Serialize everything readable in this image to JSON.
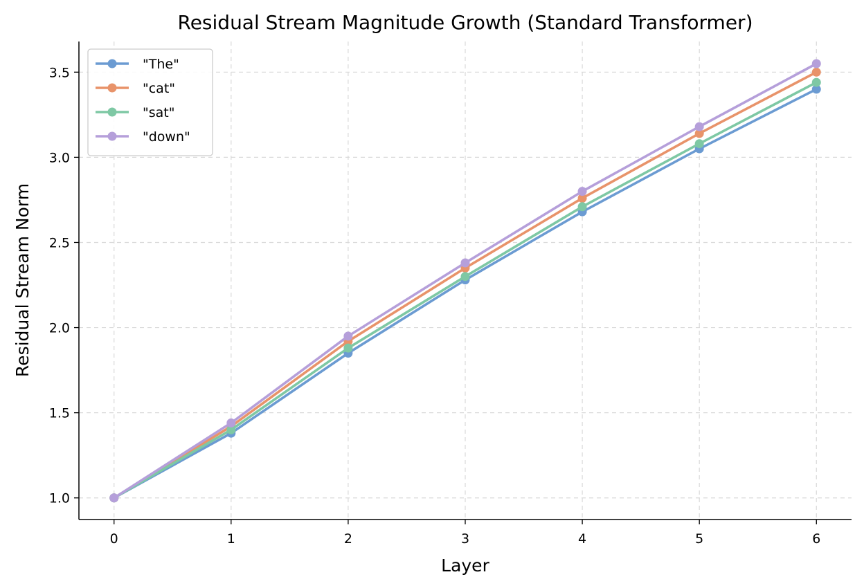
{
  "chart_data": {
    "type": "line",
    "title": "Residual Stream Magnitude Growth (Standard Transformer)",
    "xlabel": "Layer",
    "ylabel": "Residual Stream Norm",
    "x": [
      0,
      1,
      2,
      3,
      4,
      5,
      6
    ],
    "xticks": [
      "0",
      "1",
      "2",
      "3",
      "4",
      "5",
      "6"
    ],
    "yticks": [
      "1.0",
      "1.5",
      "2.0",
      "2.5",
      "3.0",
      "3.5"
    ],
    "xlim": [
      -0.3,
      6.3
    ],
    "ylim": [
      0.873,
      3.68
    ],
    "grid": true,
    "legend_position": "top-left",
    "series": [
      {
        "name": "\"The\"",
        "color": "#6b9bd2",
        "values": [
          1.0,
          1.38,
          1.85,
          2.28,
          2.68,
          3.05,
          3.4
        ]
      },
      {
        "name": "\"cat\"",
        "color": "#e8936a",
        "values": [
          1.0,
          1.42,
          1.92,
          2.35,
          2.76,
          3.14,
          3.5
        ]
      },
      {
        "name": "\"sat\"",
        "color": "#7ec8a4",
        "values": [
          1.0,
          1.4,
          1.88,
          2.3,
          2.71,
          3.08,
          3.44
        ]
      },
      {
        "name": "\"down\"",
        "color": "#b59fda",
        "values": [
          1.0,
          1.44,
          1.95,
          2.38,
          2.8,
          3.18,
          3.55
        ]
      }
    ]
  }
}
